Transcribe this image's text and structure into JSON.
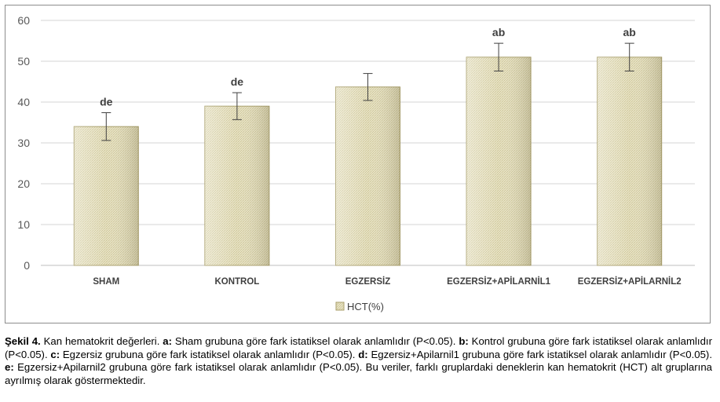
{
  "chart_data": {
    "type": "bar",
    "title": "",
    "xlabel": "",
    "ylabel": "",
    "ylim": [
      0,
      60
    ],
    "yticks": [
      "0",
      "10",
      "20",
      "30",
      "40",
      "50",
      "60"
    ],
    "grid": true,
    "legend_position": "bottom",
    "categories": [
      "SHAM",
      "KONTROL",
      "EGZERSİZ",
      "EGZERSİZ+APİLARNİL1",
      "EGZERSİZ+APİLARNİL2"
    ],
    "series": [
      {
        "name": "HCT(%)",
        "values": [
          34,
          39,
          43.7,
          51,
          51
        ],
        "error": [
          3.4,
          3.3,
          3.3,
          3.4,
          3.4
        ],
        "labels": [
          "de",
          "de",
          "",
          "ab",
          "ab"
        ]
      }
    ],
    "colors": {
      "bar_fill": "#e6e1c0",
      "bar_pattern": "#c8c096",
      "bar_edge": "#a89e6a",
      "grid": "#d4d4d4",
      "axis_text": "#595959"
    }
  },
  "caption": {
    "figure_label": "Şekil 4.",
    "intro": " Kan hematokrit değerleri. ",
    "parts": [
      {
        "key": "a:",
        "text": " Sham grubuna göre fark istatiksel olarak anlamlıdır (P<0.05). "
      },
      {
        "key": "b:",
        "text": " Kontrol grubuna göre fark istatiksel olarak anlamlıdır (P<0.05). "
      },
      {
        "key": "c:",
        "text": " Egzersiz grubuna göre fark istatiksel olarak anlamlıdır (P<0.05). "
      },
      {
        "key": "d:",
        "text": " Egzersiz+Apilarnil1 grubuna göre fark istatiksel olarak anlamlıdır (P<0.05). "
      },
      {
        "key": "e:",
        "text": " Egzersiz+Apilarnil2 grubuna göre fark istatiksel olarak anlamlıdır (P<0.05)."
      }
    ],
    "tail": " Bu veriler, farklı gruplardaki deneklerin kan hematokrit (HCT) alt gruplarına ayrılmış olarak göstermektedir."
  }
}
